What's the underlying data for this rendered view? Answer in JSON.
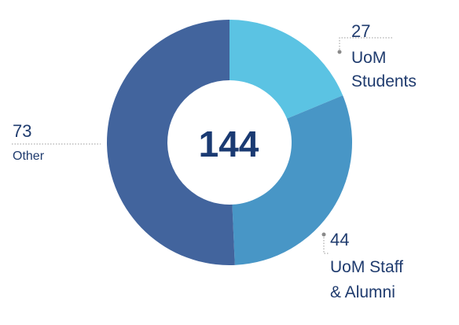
{
  "chart_data": {
    "type": "pie",
    "donut": true,
    "total": "144",
    "categories": [
      "UoM Students",
      "UoM Staff & Alumni",
      "Other"
    ],
    "values": [
      27,
      44,
      73
    ],
    "colors": [
      "#5bc3e3",
      "#4896c6",
      "#42649d"
    ],
    "labels": [
      {
        "value": "27",
        "lines": [
          "UoM",
          "Students"
        ]
      },
      {
        "value": "44",
        "lines": [
          "UoM Staff",
          "& Alumni"
        ]
      },
      {
        "value": "73",
        "lines": [
          "Other"
        ]
      }
    ]
  }
}
